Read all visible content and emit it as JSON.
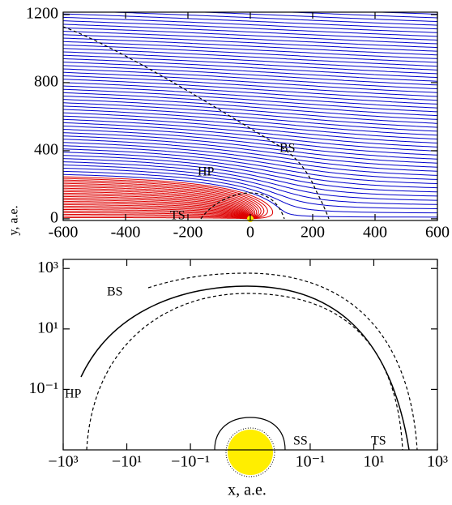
{
  "chart_data": [
    {
      "type": "streamplot",
      "ylabel": "y, a.e.",
      "xlim": [
        -600,
        600
      ],
      "xticks": [
        -600,
        -400,
        -200,
        0,
        200,
        400,
        600
      ],
      "ylim": [
        -10,
        1214
      ],
      "yticks": [
        0,
        400,
        800,
        1200
      ],
      "outer_color": "#0000cc",
      "inner_color": "#dd0000",
      "annotations": [
        "BS",
        "HP",
        "TS"
      ]
    },
    {
      "type": "line",
      "xlabel": "x, a.e.",
      "xscale": "symlog",
      "linthresh": 0.1,
      "yscale": "log",
      "xlim": [
        -1000,
        1000
      ],
      "xticks": [
        {
          "value": -1000,
          "label": "−10³"
        },
        {
          "value": -10,
          "label": "−10¹"
        },
        {
          "value": -0.1,
          "label": "−10⁻¹"
        },
        {
          "value": 0.1,
          "label": "10⁻¹"
        },
        {
          "value": 10,
          "label": "10¹"
        },
        {
          "value": 1000,
          "label": "10³"
        }
      ],
      "ylim": [
        0.001,
        2000
      ],
      "yticks": [
        {
          "value": 0.1,
          "label": "10⁻¹"
        },
        {
          "value": 10,
          "label": "10¹"
        },
        {
          "value": 1000,
          "label": "10³"
        }
      ],
      "annotations": [
        "BS",
        "HP",
        "SS",
        "TS"
      ]
    }
  ]
}
